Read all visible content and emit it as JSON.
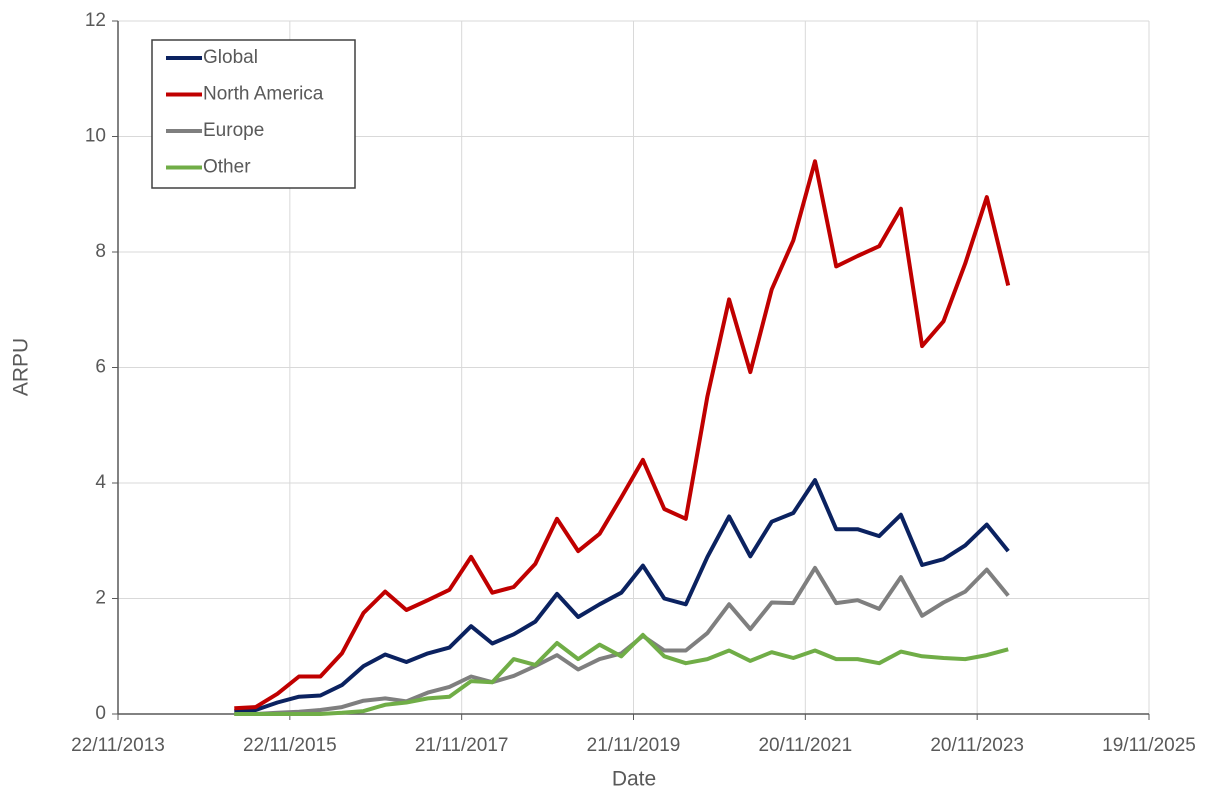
{
  "chart_data": {
    "type": "line",
    "x_label": "Date",
    "y_label": "ARPU",
    "x": [
      "2015-03-31",
      "2015-06-30",
      "2015-09-30",
      "2015-12-31",
      "2016-03-31",
      "2016-06-30",
      "2016-09-30",
      "2016-12-31",
      "2017-03-31",
      "2017-06-30",
      "2017-09-30",
      "2017-12-31",
      "2018-03-31",
      "2018-06-30",
      "2018-09-30",
      "2018-12-31",
      "2019-03-31",
      "2019-06-30",
      "2019-09-30",
      "2019-12-31",
      "2020-03-31",
      "2020-06-30",
      "2020-09-30",
      "2020-12-31",
      "2021-03-31",
      "2021-06-30",
      "2021-09-30",
      "2021-12-31",
      "2022-03-31",
      "2022-06-30",
      "2022-09-30",
      "2022-12-31",
      "2023-03-31",
      "2023-06-30",
      "2023-09-30",
      "2023-12-31",
      "2024-03-31"
    ],
    "series": [
      {
        "name": "Global",
        "color": "#0b2260",
        "values": [
          0.05,
          0.07,
          0.2,
          0.3,
          0.32,
          0.5,
          0.83,
          1.03,
          0.9,
          1.05,
          1.15,
          1.52,
          1.22,
          1.38,
          1.6,
          2.08,
          1.68,
          1.9,
          2.1,
          2.57,
          2.0,
          1.9,
          2.72,
          3.42,
          2.73,
          3.33,
          3.48,
          4.05,
          3.2,
          3.2,
          3.08,
          3.45,
          2.58,
          2.68,
          2.92,
          3.28,
          2.82
        ]
      },
      {
        "name": "North America",
        "color": "#c00000",
        "values": [
          0.1,
          0.12,
          0.35,
          0.65,
          0.65,
          1.05,
          1.75,
          2.12,
          1.8,
          1.97,
          2.15,
          2.72,
          2.1,
          2.2,
          2.6,
          3.38,
          2.82,
          3.12,
          3.75,
          4.4,
          3.55,
          3.38,
          5.5,
          7.18,
          5.92,
          7.35,
          8.2,
          9.57,
          7.75,
          7.93,
          8.1,
          8.75,
          6.37,
          6.8,
          7.8,
          8.95,
          7.42
        ]
      },
      {
        "name": "Europe",
        "color": "#7f7f7f",
        "values": [
          0.0,
          0.0,
          0.02,
          0.04,
          0.07,
          0.12,
          0.23,
          0.27,
          0.22,
          0.37,
          0.47,
          0.65,
          0.55,
          0.66,
          0.83,
          1.02,
          0.77,
          0.95,
          1.05,
          1.35,
          1.1,
          1.1,
          1.4,
          1.9,
          1.47,
          1.93,
          1.92,
          2.53,
          1.92,
          1.97,
          1.82,
          2.37,
          1.7,
          1.93,
          2.12,
          2.5,
          2.05
        ]
      },
      {
        "name": "Other",
        "color": "#70ad47",
        "values": [
          0,
          0,
          0,
          0,
          0,
          0.02,
          0.05,
          0.16,
          0.2,
          0.27,
          0.3,
          0.57,
          0.55,
          0.95,
          0.85,
          1.23,
          0.95,
          1.2,
          1.0,
          1.37,
          1.0,
          0.88,
          0.95,
          1.1,
          0.92,
          1.07,
          0.97,
          1.1,
          0.95,
          0.95,
          0.88,
          1.08,
          1.0,
          0.97,
          0.95,
          1.02,
          1.12
        ]
      }
    ],
    "xlim": [
      "2013-11-22",
      "2025-11-19"
    ],
    "xticks": [
      {
        "value": "2013-11-22",
        "label": "22/11/2013"
      },
      {
        "value": "2015-11-22",
        "label": "22/11/2015"
      },
      {
        "value": "2017-11-21",
        "label": "21/11/2017"
      },
      {
        "value": "2019-11-21",
        "label": "21/11/2019"
      },
      {
        "value": "2021-11-20",
        "label": "20/11/2021"
      },
      {
        "value": "2023-11-20",
        "label": "20/11/2023"
      },
      {
        "value": "2025-11-19",
        "label": "19/11/2025"
      }
    ],
    "ylim": [
      0,
      12
    ],
    "yticks": [
      0,
      2,
      4,
      6,
      8,
      10,
      12
    ],
    "grid": true,
    "legend": "upper left"
  }
}
